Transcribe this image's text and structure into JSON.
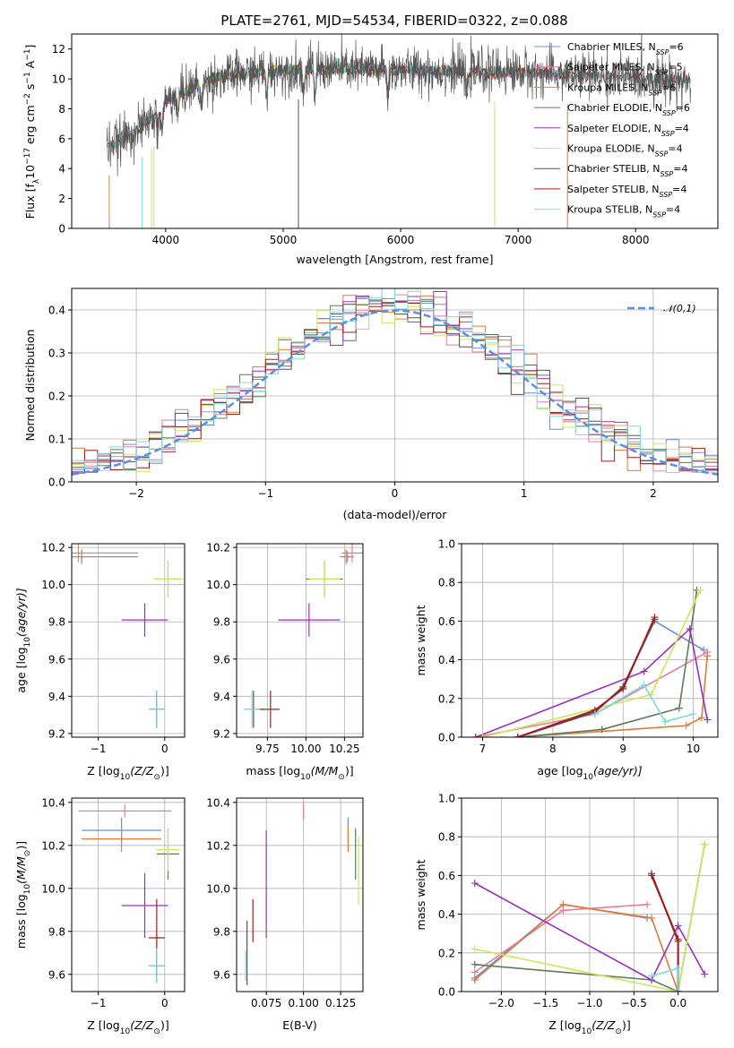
{
  "figure_title": "PLATE=2761, MJD=54534, FIBERID=0322, z=0.088",
  "colors": {
    "chabrier_miles": "#6a8fd6",
    "salpeter_miles": "#e67ca0",
    "kroupa_miles": "#e07b3a",
    "chabrier_elodie": "#5a7d5a",
    "salpeter_elodie": "#9b30b8",
    "kroupa_elodie": "#cfe65a",
    "chabrier_stelib": "#555555",
    "salpeter_stelib": "#a31e1e",
    "kroupa_stelib": "#7fdada",
    "normal_curve": "#5b8ee6",
    "grid": "#b0b0b0"
  },
  "chart_data": [
    {
      "id": "spectrum",
      "type": "line",
      "xlabel": "wavelength [Angstrom, rest frame]",
      "ylabel_parts": [
        "Flux [f",
        "λ",
        "10",
        "−17",
        " erg cm",
        "−2",
        " s",
        "−1",
        " A",
        "−1",
        "]"
      ],
      "xlim": [
        3200,
        8700
      ],
      "ylim": [
        0,
        13
      ],
      "xticks": [
        4000,
        5000,
        6000,
        7000,
        8000
      ],
      "yticks": [
        0,
        2,
        4,
        6,
        8,
        10,
        12
      ],
      "grid": false,
      "legend_position": "top-right",
      "series": [
        {
          "key": "chabrier_miles",
          "name": "Chabrier MILES",
          "nssp": "6",
          "x_range": [
            3520,
            7420
          ]
        },
        {
          "key": "salpeter_miles",
          "name": "Salpeter MILES",
          "nssp": "5",
          "x_range": [
            3520,
            7420
          ]
        },
        {
          "key": "kroupa_miles",
          "name": "Kroupa MILES",
          "nssp": "6",
          "x_range": [
            3520,
            7420
          ]
        },
        {
          "key": "chabrier_elodie",
          "name": "Chabrier ELODIE",
          "nssp": "6",
          "x_range": [
            3900,
            6800
          ]
        },
        {
          "key": "salpeter_elodie",
          "name": "Salpeter ELODIE",
          "nssp": "4",
          "x_range": [
            3900,
            6800
          ]
        },
        {
          "key": "kroupa_elodie",
          "name": "Kroupa ELODIE",
          "nssp": "4",
          "x_range": [
            3900,
            6800
          ]
        },
        {
          "key": "chabrier_stelib",
          "name": "Chabrier STELIB",
          "nssp": "4",
          "x_range": [
            3500,
            8470
          ]
        },
        {
          "key": "salpeter_stelib",
          "name": "Salpeter STELIB",
          "nssp": "4",
          "x_range": [
            3500,
            8470
          ]
        },
        {
          "key": "kroupa_stelib",
          "name": "Kroupa STELIB",
          "nssp": "4",
          "x_range": [
            3500,
            8470
          ]
        }
      ],
      "continuum": [
        [
          3500,
          5.5
        ],
        [
          3600,
          5.8
        ],
        [
          3700,
          6.3
        ],
        [
          3800,
          6.8
        ],
        [
          3900,
          7.5
        ],
        [
          4000,
          8.5
        ],
        [
          4100,
          9.0
        ],
        [
          4200,
          9.3
        ],
        [
          4400,
          10.0
        ],
        [
          4600,
          10.3
        ],
        [
          5000,
          10.6
        ],
        [
          5500,
          10.7
        ],
        [
          6000,
          10.6
        ],
        [
          6500,
          10.5
        ],
        [
          7000,
          10.5
        ],
        [
          7400,
          10.3
        ],
        [
          7800,
          10.2
        ],
        [
          8200,
          10.0
        ],
        [
          8470,
          9.8
        ]
      ],
      "absorption_lines": [
        3934,
        3969,
        4102,
        4305,
        4861,
        5175,
        5270,
        5890,
        6563
      ]
    },
    {
      "id": "residuals",
      "type": "histogram",
      "xlabel": "(data-model)/error",
      "ylabel": "Normed distribution",
      "xlim": [
        -2.5,
        2.5
      ],
      "ylim": [
        0,
        0.45
      ],
      "xticks": [
        -2,
        -1,
        0,
        1,
        2
      ],
      "yticks": [
        0.0,
        0.1,
        0.2,
        0.3,
        0.4
      ],
      "grid": true,
      "legend_position": "top-right",
      "curve_label": "𝒩(0,1)",
      "bin_width": 0.1
    },
    {
      "id": "age_vs_Z",
      "type": "errorbar",
      "xlabel_parts": [
        "Z [log",
        "10",
        "(Z/Z",
        "⊙",
        ")]"
      ],
      "ylabel_parts": [
        "age  [log",
        "10",
        "(age/yr)]"
      ],
      "xlim": [
        -1.4,
        0.3
      ],
      "ylim": [
        9.18,
        10.22
      ],
      "xticks": [
        -1,
        0
      ],
      "yticks": [
        9.2,
        9.4,
        9.6,
        9.8,
        10.0,
        10.2
      ],
      "grid": true,
      "points": [
        {
          "series": "chabrier_miles",
          "x": -1.25,
          "y": 10.15,
          "xerr": 0.85,
          "yerr": 0.03
        },
        {
          "series": "salpeter_miles",
          "x": -1.3,
          "y": 10.17,
          "xerr": 0.9,
          "yerr": 0.05
        },
        {
          "series": "kroupa_miles",
          "x": -1.25,
          "y": 10.15,
          "xerr": 0.8,
          "yerr": 0.04
        },
        {
          "series": "chabrier_elodie",
          "x": 0.05,
          "y": 10.03,
          "xerr": 0.2,
          "yerr": 0.1
        },
        {
          "series": "salpeter_elodie",
          "x": -0.3,
          "y": 9.81,
          "xerr": 0.35,
          "yerr": 0.09
        },
        {
          "series": "kroupa_elodie",
          "x": 0.05,
          "y": 10.03,
          "xerr": 0.22,
          "yerr": 0.1
        },
        {
          "series": "chabrier_stelib",
          "x": -0.12,
          "y": 9.33,
          "xerr": 0.12,
          "yerr": 0.1
        },
        {
          "series": "salpeter_stelib",
          "x": -0.12,
          "y": 9.33,
          "xerr": 0.1,
          "yerr": 0.1
        },
        {
          "series": "kroupa_stelib",
          "x": -0.12,
          "y": 9.33,
          "xerr": 0.12,
          "yerr": 0.1
        }
      ]
    },
    {
      "id": "age_vs_mass",
      "type": "errorbar",
      "xlabel_parts": [
        "mass [log",
        "10",
        "(M/M",
        "⊙",
        ")]"
      ],
      "ylabel_parts": [],
      "xlim": [
        9.55,
        10.37
      ],
      "ylim": [
        9.18,
        10.22
      ],
      "xticks": [
        9.75,
        10.0,
        10.25
      ],
      "xtick_labels": [
        "9.75",
        "10.00",
        "10.25"
      ],
      "yticks": [
        9.2,
        9.4,
        9.6,
        9.8,
        10.0,
        10.2
      ],
      "grid": true,
      "points": [
        {
          "series": "chabrier_miles",
          "x": 10.27,
          "y": 10.15,
          "xerr": 0.04,
          "yerr": 0.03
        },
        {
          "series": "salpeter_miles",
          "x": 10.3,
          "y": 10.17,
          "xerr": 0.07,
          "yerr": 0.05
        },
        {
          "series": "kroupa_miles",
          "x": 10.26,
          "y": 10.15,
          "xerr": 0.04,
          "yerr": 0.04
        },
        {
          "series": "chabrier_elodie",
          "x": 10.12,
          "y": 10.03,
          "xerr": 0.12,
          "yerr": 0.1
        },
        {
          "series": "salpeter_elodie",
          "x": 10.02,
          "y": 9.81,
          "xerr": 0.2,
          "yerr": 0.09
        },
        {
          "series": "kroupa_elodie",
          "x": 10.12,
          "y": 10.03,
          "xerr": 0.1,
          "yerr": 0.1
        },
        {
          "series": "chabrier_stelib",
          "x": 9.66,
          "y": 9.33,
          "xerr": 0.06,
          "yerr": 0.1
        },
        {
          "series": "salpeter_stelib",
          "x": 9.77,
          "y": 9.33,
          "xerr": 0.06,
          "yerr": 0.1
        },
        {
          "series": "kroupa_stelib",
          "x": 9.65,
          "y": 9.33,
          "xerr": 0.05,
          "yerr": 0.1
        }
      ]
    },
    {
      "id": "mass_weight_vs_age",
      "type": "line",
      "xlabel_parts": [
        "age  [log",
        "10",
        "(age/yr)]"
      ],
      "ylabel": "mass weight",
      "xlim": [
        6.7,
        10.35
      ],
      "ylim": [
        0,
        1
      ],
      "xticks": [
        7,
        8,
        9,
        10
      ],
      "yticks": [
        0.0,
        0.2,
        0.4,
        0.6,
        0.8,
        1.0
      ],
      "grid": true,
      "series": [
        {
          "key": "chabrier_miles",
          "x": [
            7.5,
            8.6,
            9.0,
            9.45,
            10.15
          ],
          "y": [
            0.0,
            0.13,
            0.26,
            0.6,
            0.45
          ]
        },
        {
          "key": "salpeter_miles",
          "x": [
            6.9,
            8.6,
            10.2
          ],
          "y": [
            0.0,
            0.12,
            0.44
          ]
        },
        {
          "key": "kroupa_miles",
          "x": [
            7.5,
            9.9,
            10.12,
            10.2
          ],
          "y": [
            0.0,
            0.06,
            0.1,
            0.42
          ]
        },
        {
          "key": "chabrier_elodie",
          "x": [
            7.5,
            8.7,
            9.8,
            10.05
          ],
          "y": [
            0.0,
            0.04,
            0.15,
            0.76
          ]
        },
        {
          "key": "salpeter_elodie",
          "x": [
            6.9,
            9.3,
            9.95,
            10.2
          ],
          "y": [
            0.0,
            0.34,
            0.56,
            0.09
          ]
        },
        {
          "key": "kroupa_elodie",
          "x": [
            7.0,
            9.4,
            10.1
          ],
          "y": [
            0.0,
            0.22,
            0.76
          ]
        },
        {
          "key": "chabrier_stelib",
          "x": [
            7.5,
            8.6,
            9.0,
            9.45
          ],
          "y": [
            0.0,
            0.13,
            0.26,
            0.61
          ]
        },
        {
          "key": "salpeter_stelib",
          "x": [
            7.5,
            8.6,
            9.0,
            9.45
          ],
          "y": [
            0.0,
            0.14,
            0.25,
            0.62
          ]
        },
        {
          "key": "kroupa_stelib",
          "x": [
            8.6,
            9.3,
            9.6,
            10.0
          ],
          "y": [
            0.12,
            0.27,
            0.08,
            0.12
          ]
        }
      ]
    },
    {
      "id": "mass_vs_Z",
      "type": "errorbar",
      "xlabel_parts": [
        "Z [log",
        "10",
        "(Z/Z",
        "⊙",
        ")]"
      ],
      "ylabel_parts": [
        "mass [log",
        "10",
        "(M/M",
        "⊙",
        ")]"
      ],
      "xlim": [
        -1.4,
        0.3
      ],
      "ylim": [
        9.52,
        10.42
      ],
      "xticks": [
        -1,
        0
      ],
      "yticks": [
        9.6,
        9.8,
        10.0,
        10.2,
        10.4
      ],
      "grid": true,
      "points": [
        {
          "series": "chabrier_miles",
          "x": -0.65,
          "y": 10.27,
          "xerr": 0.6,
          "yerr": 0.06
        },
        {
          "series": "salpeter_miles",
          "x": -0.6,
          "y": 10.36,
          "xerr": 0.7,
          "yerr": 0.03
        },
        {
          "series": "kroupa_miles",
          "x": -0.65,
          "y": 10.23,
          "xerr": 0.6,
          "yerr": 0.06
        },
        {
          "series": "chabrier_elodie",
          "x": 0.05,
          "y": 10.16,
          "xerr": 0.17,
          "yerr": 0.12
        },
        {
          "series": "salpeter_elodie",
          "x": -0.3,
          "y": 9.92,
          "xerr": 0.35,
          "yerr": 0.15
        },
        {
          "series": "kroupa_elodie",
          "x": 0.05,
          "y": 10.18,
          "xerr": 0.18,
          "yerr": 0.1
        },
        {
          "series": "chabrier_stelib",
          "x": -0.12,
          "y": 9.64,
          "xerr": 0.12,
          "yerr": 0.08
        },
        {
          "series": "salpeter_stelib",
          "x": -0.12,
          "y": 9.77,
          "xerr": 0.12,
          "yerr": 0.18
        },
        {
          "series": "kroupa_stelib",
          "x": -0.12,
          "y": 9.64,
          "xerr": 0.12,
          "yerr": 0.08
        }
      ]
    },
    {
      "id": "mass_vs_ebv",
      "type": "errorbar",
      "xlabel": "E(B-V)",
      "xlim": [
        0.055,
        0.14
      ],
      "ylim": [
        9.52,
        10.42
      ],
      "xticks": [
        0.075,
        0.1,
        0.125
      ],
      "xtick_labels": [
        "0.075",
        "0.100",
        "0.125"
      ],
      "yticks": [
        9.6,
        9.8,
        10.0,
        10.2,
        10.4
      ],
      "grid": true,
      "points": [
        {
          "series": "chabrier_miles",
          "x": 0.13,
          "y": 10.27,
          "xerr": 0,
          "yerr": 0.06
        },
        {
          "series": "salpeter_miles",
          "x": 0.1,
          "y": 10.36,
          "xerr": 0,
          "yerr": 0.04
        },
        {
          "series": "kroupa_miles",
          "x": 0.13,
          "y": 10.23,
          "xerr": 0,
          "yerr": 0.06
        },
        {
          "series": "chabrier_elodie",
          "x": 0.135,
          "y": 10.16,
          "xerr": 0,
          "yerr": 0.12
        },
        {
          "series": "salpeter_elodie",
          "x": 0.075,
          "y": 10.02,
          "xerr": 0,
          "yerr": 0.25
        },
        {
          "series": "kroupa_elodie",
          "x": 0.137,
          "y": 10.08,
          "xerr": 0,
          "yerr": 0.16
        },
        {
          "series": "chabrier_stelib",
          "x": 0.062,
          "y": 9.7,
          "xerr": 0,
          "yerr": 0.15
        },
        {
          "series": "salpeter_stelib",
          "x": 0.066,
          "y": 9.85,
          "xerr": 0,
          "yerr": 0.1
        },
        {
          "series": "kroupa_stelib",
          "x": 0.061,
          "y": 9.64,
          "xerr": 0,
          "yerr": 0.07
        }
      ]
    },
    {
      "id": "mass_weight_vs_Z",
      "type": "line",
      "xlabel_parts": [
        "Z [log",
        "10",
        "(Z/Z",
        "⊙",
        ")]"
      ],
      "ylabel": "mass weight",
      "xlim": [
        -2.45,
        0.45
      ],
      "ylim": [
        0,
        1
      ],
      "xticks": [
        -2.0,
        -1.5,
        -1.0,
        -0.5,
        0.0
      ],
      "xtick_labels": [
        "−2.0",
        "−1.5",
        "−1.0",
        "−0.5",
        "0.0"
      ],
      "yticks": [
        0.0,
        0.2,
        0.4,
        0.6,
        0.8,
        1.0
      ],
      "grid": true,
      "series": [
        {
          "key": "chabrier_miles",
          "x": [
            -2.3,
            -1.3,
            -0.35
          ],
          "y": [
            0.07,
            0.45,
            0.38
          ]
        },
        {
          "key": "salpeter_miles",
          "x": [
            -2.3,
            -1.3,
            -0.35
          ],
          "y": [
            0.1,
            0.42,
            0.45
          ]
        },
        {
          "key": "kroupa_miles",
          "x": [
            -2.3,
            -1.3,
            -0.3,
            0.0
          ],
          "y": [
            0.06,
            0.45,
            0.38,
            0.0
          ]
        },
        {
          "key": "chabrier_elodie",
          "x": [
            -2.3,
            -0.3,
            0.0,
            0.3
          ],
          "y": [
            0.14,
            0.06,
            0.0,
            0.76
          ]
        },
        {
          "key": "salpeter_elodie",
          "x": [
            -2.3,
            -0.3,
            0.0,
            0.3
          ],
          "y": [
            0.56,
            0.06,
            0.34,
            0.09
          ]
        },
        {
          "key": "kroupa_elodie",
          "x": [
            -2.3,
            0.0,
            0.3
          ],
          "y": [
            0.22,
            0.0,
            0.76
          ]
        },
        {
          "key": "chabrier_stelib",
          "x": [
            -0.3,
            0.0,
            0.0
          ],
          "y": [
            0.61,
            0.26,
            0.0
          ]
        },
        {
          "key": "salpeter_stelib",
          "x": [
            -0.3,
            0.0,
            0.0
          ],
          "y": [
            0.6,
            0.27,
            0.0
          ]
        },
        {
          "key": "kroupa_stelib",
          "x": [
            -0.3,
            0.0,
            0.0
          ],
          "y": [
            0.08,
            0.12,
            0.0
          ]
        }
      ]
    }
  ]
}
